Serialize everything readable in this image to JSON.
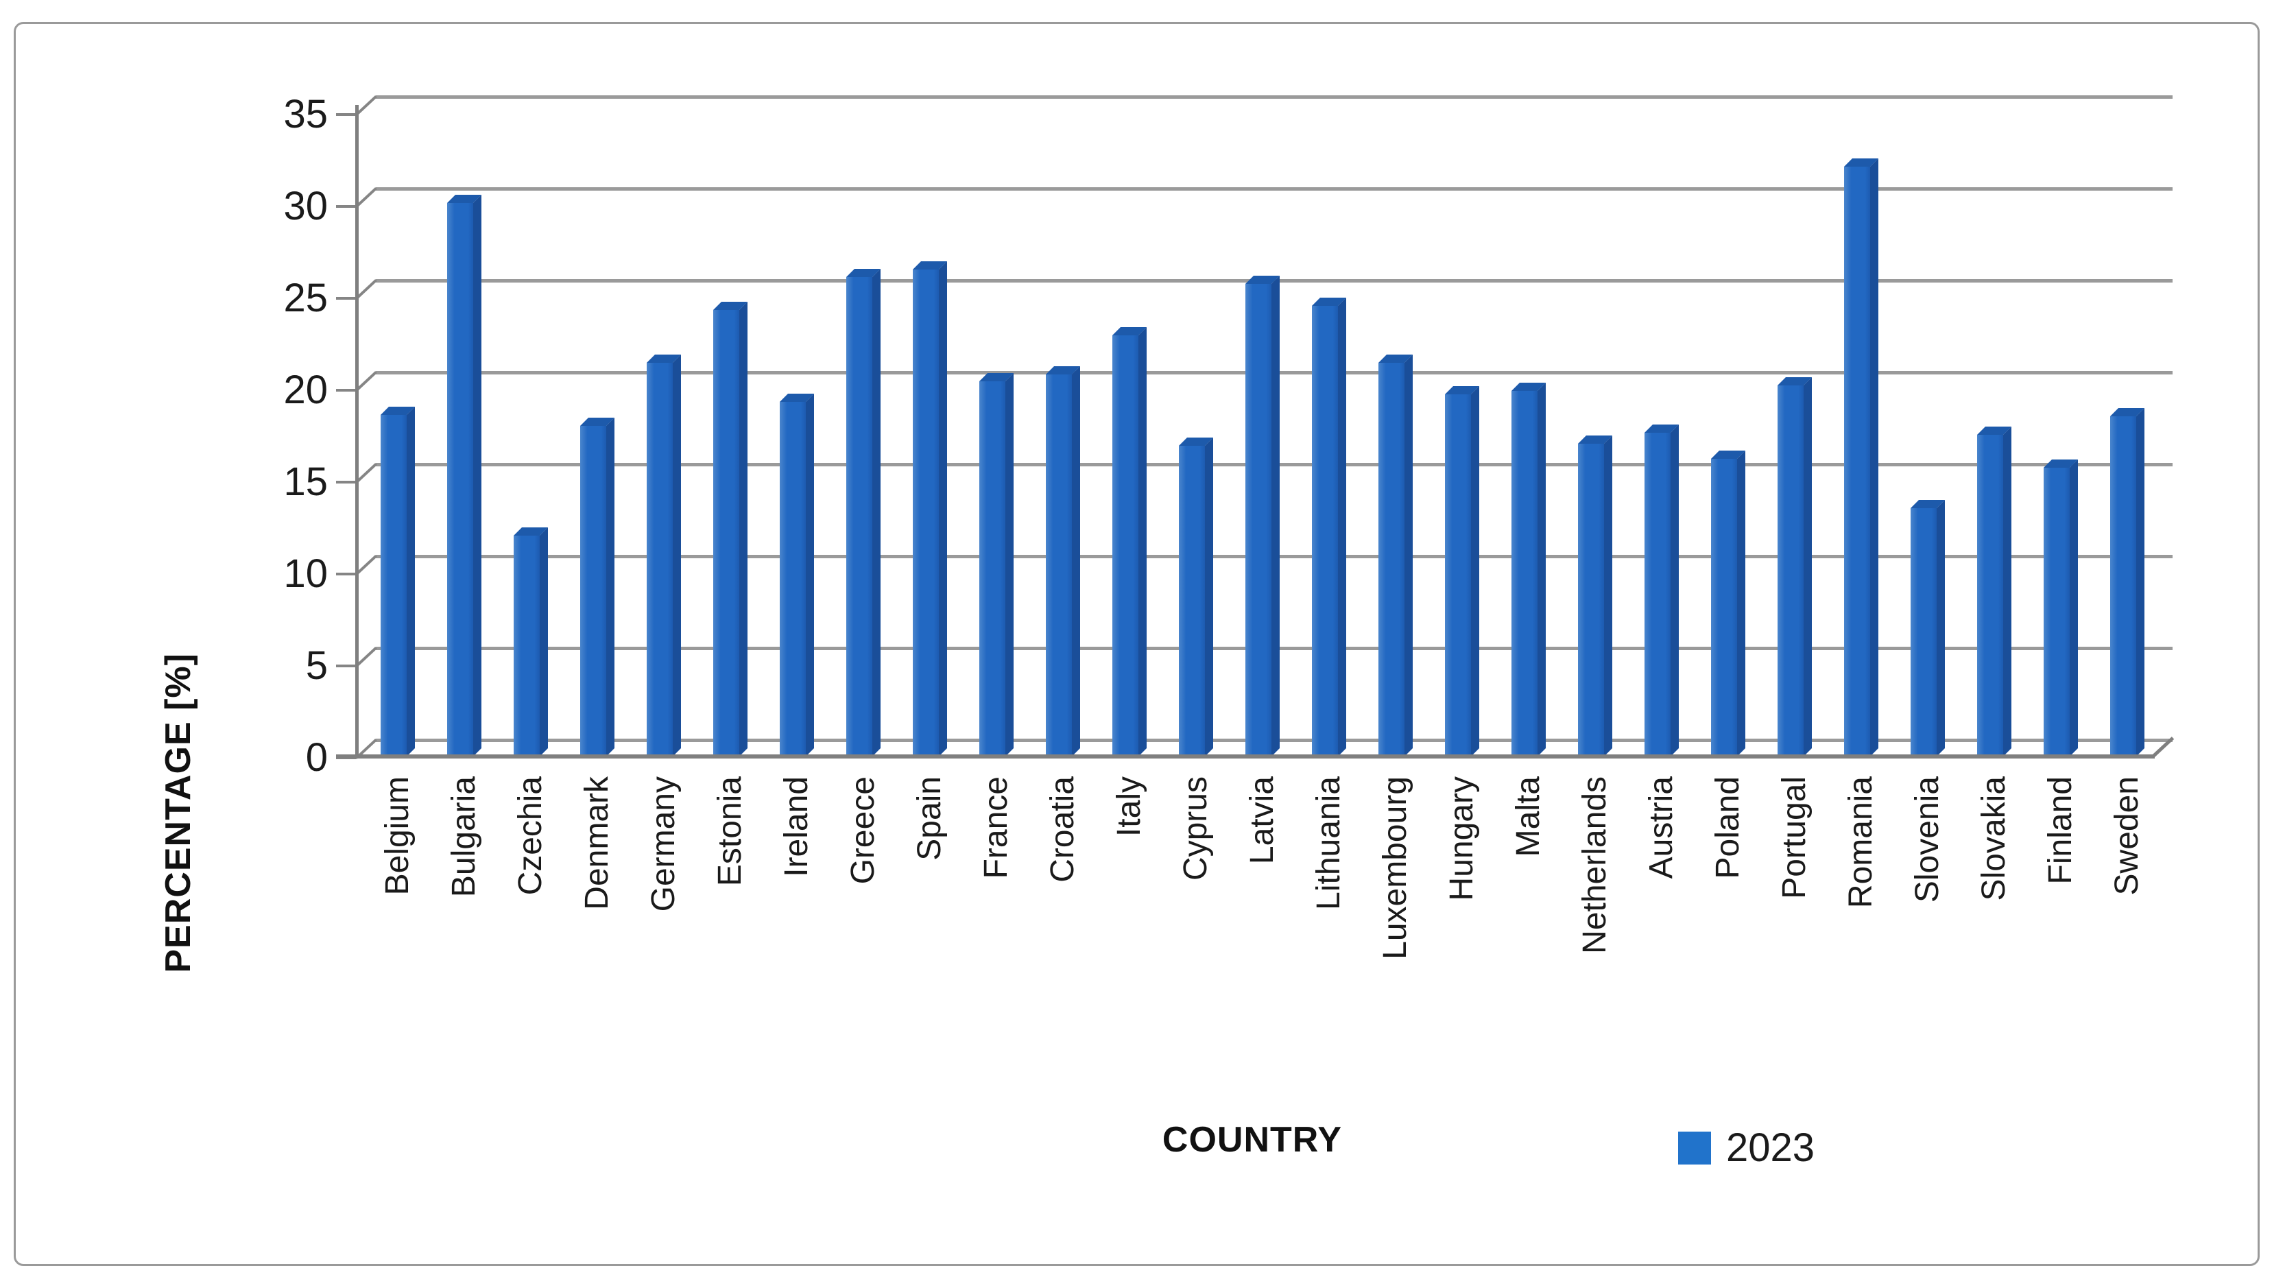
{
  "chart_data": {
    "type": "bar",
    "title": "",
    "xlabel": "COUNTRY",
    "ylabel": "PERCENTAGE [%]",
    "ylim": [
      0,
      35
    ],
    "ytick_step": 5,
    "ytick_labels": [
      "0",
      "5",
      "10",
      "15",
      "20",
      "25",
      "30",
      "35"
    ],
    "grid": true,
    "style": "3d-column",
    "legend_position": "bottom-right",
    "categories": [
      "Belgium",
      "Bulgaria",
      "Czechia",
      "Denmark",
      "Germany",
      "Estonia",
      "Ireland",
      "Greece",
      "Spain",
      "France",
      "Croatia",
      "Italy",
      "Cyprus",
      "Latvia",
      "Lithuania",
      "Luxembourg",
      "Hungary",
      "Malta",
      "Netherlands",
      "Austria",
      "Poland",
      "Portugal",
      "Romania",
      "Slovenia",
      "Slovakia",
      "Finland",
      "Sweden"
    ],
    "series": [
      {
        "name": "2023",
        "values": [
          18.6,
          30.1,
          12.0,
          18.0,
          21.4,
          24.3,
          19.3,
          26.1,
          26.5,
          20.4,
          20.8,
          22.9,
          16.9,
          25.7,
          24.5,
          21.4,
          19.7,
          19.9,
          17.0,
          17.6,
          16.2,
          20.2,
          32.1,
          13.5,
          17.5,
          15.7,
          18.5
        ]
      }
    ],
    "colors": {
      "bar_front": "#2268c2",
      "bar_side": "#1a4e99",
      "bar_top": "#1d5aab",
      "legend_swatch": "#2173cb",
      "gridline": "#9a9a9a",
      "axis": "#7f7f7f"
    }
  }
}
